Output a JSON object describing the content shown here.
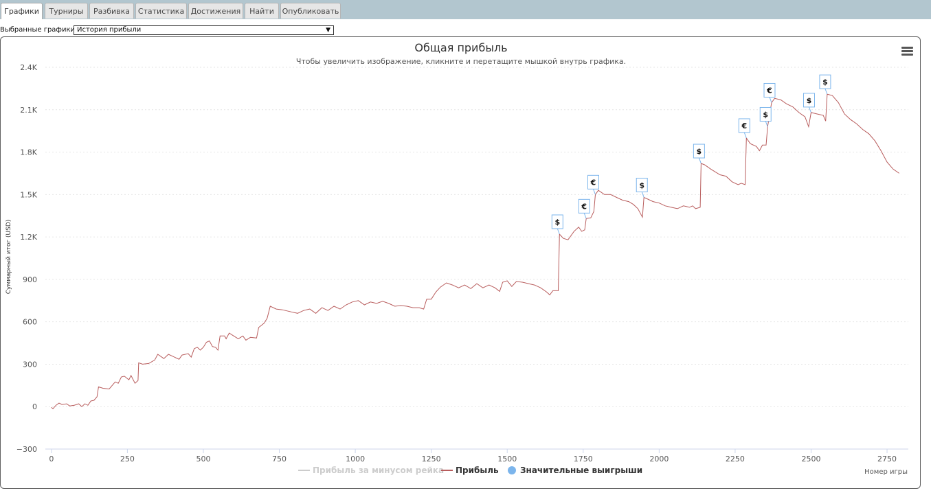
{
  "tabs": [
    {
      "label": "Графики",
      "active": true
    },
    {
      "label": "Турниры",
      "active": false
    },
    {
      "label": "Разбивка",
      "active": false
    },
    {
      "label": "Статистика",
      "active": false
    },
    {
      "label": "Достижения",
      "active": false
    },
    {
      "label": "Найти",
      "active": false
    },
    {
      "label": "Опубликовать",
      "active": false
    }
  ],
  "selector": {
    "label": "Выбранные графики:",
    "value": "История прибыли"
  },
  "colors": {
    "profit_line": "#b85c5c",
    "rake_line": "#cccccc",
    "significant_marker": "#7cb5ec",
    "title": "#333333",
    "grid": "#e6e6e6"
  },
  "chart_data": {
    "type": "line",
    "title": "Общая прибыль",
    "subtitle": "Чтобы увеличить изображение, кликните и перетащите мышкой внутрь графика.",
    "xlabel": "Номер игры",
    "ylabel": "Суммарный итог (USD)",
    "xlim": [
      -20,
      2820
    ],
    "ylim": [
      -300,
      2400
    ],
    "x_ticks": [
      0,
      250,
      500,
      750,
      1000,
      1250,
      1500,
      1750,
      2000,
      2250,
      2500,
      2750
    ],
    "x_tick_labels": [
      "0",
      "250",
      "500",
      "750",
      "1000",
      "1250",
      "1500",
      "1750",
      "2000",
      "2250",
      "2500",
      "2750"
    ],
    "y_ticks": [
      -300,
      0,
      300,
      600,
      900,
      1200,
      1500,
      1800,
      2100,
      2400
    ],
    "y_tick_labels": [
      "−300",
      "0",
      "300",
      "600",
      "900",
      "1.2K",
      "1.5K",
      "1.8K",
      "2.1K",
      "2.4K"
    ],
    "grid": true,
    "legend_position": "bottom-center",
    "series": [
      {
        "name": "Прибыль за минусом рейка",
        "visible": false,
        "values": []
      },
      {
        "name": "Прибыль",
        "visible": true,
        "points": [
          [
            0,
            -5
          ],
          [
            5,
            -15
          ],
          [
            15,
            10
          ],
          [
            25,
            25
          ],
          [
            35,
            15
          ],
          [
            50,
            20
          ],
          [
            60,
            5
          ],
          [
            75,
            10
          ],
          [
            90,
            20
          ],
          [
            100,
            0
          ],
          [
            110,
            20
          ],
          [
            120,
            10
          ],
          [
            130,
            40
          ],
          [
            140,
            45
          ],
          [
            150,
            70
          ],
          [
            155,
            140
          ],
          [
            170,
            130
          ],
          [
            190,
            125
          ],
          [
            200,
            150
          ],
          [
            210,
            175
          ],
          [
            220,
            165
          ],
          [
            230,
            210
          ],
          [
            240,
            215
          ],
          [
            255,
            190
          ],
          [
            262,
            220
          ],
          [
            275,
            165
          ],
          [
            285,
            185
          ],
          [
            287,
            310
          ],
          [
            300,
            300
          ],
          [
            320,
            305
          ],
          [
            340,
            330
          ],
          [
            350,
            370
          ],
          [
            370,
            340
          ],
          [
            385,
            370
          ],
          [
            400,
            355
          ],
          [
            420,
            335
          ],
          [
            430,
            365
          ],
          [
            450,
            375
          ],
          [
            460,
            350
          ],
          [
            470,
            410
          ],
          [
            480,
            420
          ],
          [
            490,
            400
          ],
          [
            500,
            420
          ],
          [
            510,
            455
          ],
          [
            520,
            465
          ],
          [
            530,
            425
          ],
          [
            540,
            420
          ],
          [
            548,
            400
          ],
          [
            555,
            500
          ],
          [
            570,
            500
          ],
          [
            575,
            480
          ],
          [
            585,
            520
          ],
          [
            600,
            500
          ],
          [
            615,
            480
          ],
          [
            630,
            500
          ],
          [
            640,
            470
          ],
          [
            655,
            490
          ],
          [
            675,
            485
          ],
          [
            682,
            560
          ],
          [
            700,
            590
          ],
          [
            710,
            625
          ],
          [
            720,
            710
          ],
          [
            740,
            690
          ],
          [
            760,
            685
          ],
          [
            790,
            670
          ],
          [
            810,
            660
          ],
          [
            830,
            680
          ],
          [
            850,
            690
          ],
          [
            870,
            660
          ],
          [
            890,
            700
          ],
          [
            910,
            680
          ],
          [
            930,
            710
          ],
          [
            950,
            690
          ],
          [
            970,
            720
          ],
          [
            990,
            740
          ],
          [
            1010,
            750
          ],
          [
            1030,
            720
          ],
          [
            1050,
            740
          ],
          [
            1070,
            730
          ],
          [
            1090,
            745
          ],
          [
            1110,
            730
          ],
          [
            1130,
            710
          ],
          [
            1150,
            715
          ],
          [
            1170,
            710
          ],
          [
            1190,
            700
          ],
          [
            1210,
            700
          ],
          [
            1225,
            690
          ],
          [
            1235,
            760
          ],
          [
            1250,
            760
          ],
          [
            1265,
            810
          ],
          [
            1280,
            845
          ],
          [
            1300,
            875
          ],
          [
            1320,
            860
          ],
          [
            1340,
            840
          ],
          [
            1360,
            860
          ],
          [
            1380,
            835
          ],
          [
            1400,
            870
          ],
          [
            1420,
            840
          ],
          [
            1440,
            860
          ],
          [
            1460,
            840
          ],
          [
            1475,
            815
          ],
          [
            1485,
            880
          ],
          [
            1500,
            890
          ],
          [
            1515,
            850
          ],
          [
            1530,
            885
          ],
          [
            1550,
            880
          ],
          [
            1570,
            870
          ],
          [
            1590,
            860
          ],
          [
            1610,
            840
          ],
          [
            1630,
            810
          ],
          [
            1640,
            790
          ],
          [
            1650,
            820
          ],
          [
            1668,
            820
          ],
          [
            1672,
            1220
          ],
          [
            1685,
            1190
          ],
          [
            1700,
            1180
          ],
          [
            1720,
            1240
          ],
          [
            1735,
            1270
          ],
          [
            1745,
            1240
          ],
          [
            1755,
            1250
          ],
          [
            1760,
            1330
          ],
          [
            1775,
            1335
          ],
          [
            1785,
            1380
          ],
          [
            1790,
            1500
          ],
          [
            1800,
            1530
          ],
          [
            1820,
            1500
          ],
          [
            1840,
            1500
          ],
          [
            1860,
            1480
          ],
          [
            1880,
            1460
          ],
          [
            1900,
            1450
          ],
          [
            1915,
            1430
          ],
          [
            1930,
            1400
          ],
          [
            1945,
            1340
          ],
          [
            1950,
            1480
          ],
          [
            1960,
            1470
          ],
          [
            1980,
            1450
          ],
          [
            2000,
            1440
          ],
          [
            2020,
            1420
          ],
          [
            2040,
            1410
          ],
          [
            2060,
            1400
          ],
          [
            2080,
            1420
          ],
          [
            2100,
            1410
          ],
          [
            2110,
            1420
          ],
          [
            2120,
            1400
          ],
          [
            2135,
            1410
          ],
          [
            2138,
            1720
          ],
          [
            2150,
            1710
          ],
          [
            2170,
            1680
          ],
          [
            2200,
            1640
          ],
          [
            2220,
            1630
          ],
          [
            2240,
            1590
          ],
          [
            2260,
            1570
          ],
          [
            2270,
            1580
          ],
          [
            2283,
            1570
          ],
          [
            2287,
            1900
          ],
          [
            2300,
            1860
          ],
          [
            2320,
            1840
          ],
          [
            2330,
            1810
          ],
          [
            2340,
            1850
          ],
          [
            2352,
            1850
          ],
          [
            2357,
            1980
          ],
          [
            2370,
            2150
          ],
          [
            2380,
            2180
          ],
          [
            2400,
            2170
          ],
          [
            2420,
            2140
          ],
          [
            2440,
            2120
          ],
          [
            2460,
            2080
          ],
          [
            2480,
            2050
          ],
          [
            2492,
            1980
          ],
          [
            2500,
            2080
          ],
          [
            2520,
            2070
          ],
          [
            2540,
            2060
          ],
          [
            2548,
            2020
          ],
          [
            2553,
            2210
          ],
          [
            2570,
            2200
          ],
          [
            2590,
            2150
          ],
          [
            2610,
            2070
          ],
          [
            2630,
            2030
          ],
          [
            2650,
            2000
          ],
          [
            2670,
            1960
          ],
          [
            2690,
            1930
          ],
          [
            2710,
            1880
          ],
          [
            2730,
            1810
          ],
          [
            2750,
            1730
          ],
          [
            2770,
            1680
          ],
          [
            2790,
            1650
          ]
        ]
      },
      {
        "name": "Значительные выигрыши",
        "visible": true,
        "type": "flags",
        "points": [
          {
            "x": 1672,
            "y": 1220,
            "label": "$"
          },
          {
            "x": 1760,
            "y": 1330,
            "label": "€"
          },
          {
            "x": 1790,
            "y": 1500,
            "label": "€"
          },
          {
            "x": 1950,
            "y": 1480,
            "label": "$"
          },
          {
            "x": 2138,
            "y": 1720,
            "label": "$"
          },
          {
            "x": 2287,
            "y": 1900,
            "label": "€"
          },
          {
            "x": 2357,
            "y": 1980,
            "label": "$"
          },
          {
            "x": 2370,
            "y": 2150,
            "label": "€"
          },
          {
            "x": 2500,
            "y": 2080,
            "label": "$"
          },
          {
            "x": 2553,
            "y": 2210,
            "label": "$"
          }
        ]
      }
    ]
  }
}
